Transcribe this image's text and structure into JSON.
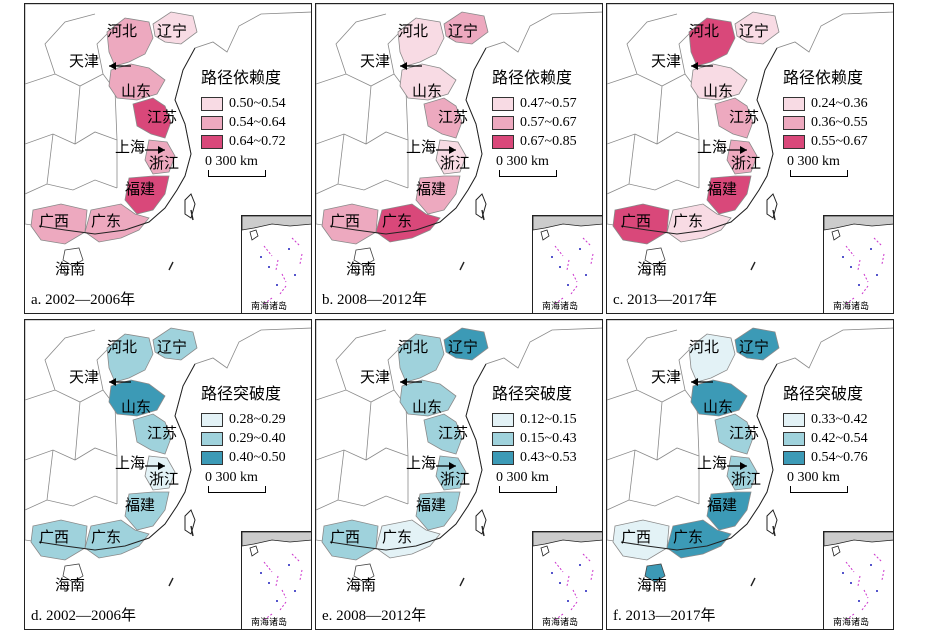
{
  "colors": {
    "pink1": "#f8dbe4",
    "pink2": "#eda9bf",
    "pink3": "#d9487a",
    "blue1": "#e3f2f6",
    "blue2": "#9fd2dc",
    "blue3": "#3c9ab6",
    "land": "#ffffff",
    "border": "#8a8a8a",
    "coast": "#222222"
  },
  "labels": {
    "hebei": "河北",
    "liaoning": "辽宁",
    "tianjin": "天津",
    "shandong": "山东",
    "jiangsu": "江苏",
    "shanghai": "上海",
    "zhejiang": "浙江",
    "fujian": "福建",
    "guangxi": "广西",
    "guangdong": "广东",
    "hainan": "海南"
  },
  "inset_label": "南海诸岛",
  "scale": "0 300 km",
  "panels": [
    {
      "caption": "a. 2002—2006年",
      "legend_title": "路径依赖度",
      "legend": [
        {
          "range": "0.50~0.54",
          "color": "#f8dbe4"
        },
        {
          "range": "0.54~0.64",
          "color": "#eda9bf"
        },
        {
          "range": "0.64~0.72",
          "color": "#d9487a"
        }
      ],
      "fills": {
        "hebei": "#eda9bf",
        "liaoning": "#f8dbe4",
        "shandong": "#eda9bf",
        "jiangsu": "#d9487a",
        "zhejiang": "#eda9bf",
        "fujian": "#d9487a",
        "guangdong": "#eda9bf",
        "guangxi": "#eda9bf",
        "hainan": "#ffffff"
      }
    },
    {
      "caption": "b. 2008—2012年",
      "legend_title": "路径依赖度",
      "legend": [
        {
          "range": "0.47~0.57",
          "color": "#f8dbe4"
        },
        {
          "range": "0.57~0.67",
          "color": "#eda9bf"
        },
        {
          "range": "0.67~0.85",
          "color": "#d9487a"
        }
      ],
      "fills": {
        "hebei": "#f8dbe4",
        "liaoning": "#eda9bf",
        "shandong": "#f8dbe4",
        "jiangsu": "#eda9bf",
        "zhejiang": "#f8dbe4",
        "fujian": "#eda9bf",
        "guangdong": "#d9487a",
        "guangxi": "#eda9bf",
        "hainan": "#ffffff"
      }
    },
    {
      "caption": "c. 2013—2017年",
      "legend_title": "路径依赖度",
      "legend": [
        {
          "range": "0.24~0.36",
          "color": "#f8dbe4"
        },
        {
          "range": "0.36~0.55",
          "color": "#eda9bf"
        },
        {
          "range": "0.55~0.67",
          "color": "#d9487a"
        }
      ],
      "fills": {
        "hebei": "#d9487a",
        "liaoning": "#f8dbe4",
        "shandong": "#f8dbe4",
        "jiangsu": "#eda9bf",
        "zhejiang": "#eda9bf",
        "fujian": "#d9487a",
        "guangdong": "#f8dbe4",
        "guangxi": "#d9487a",
        "hainan": "#ffffff"
      }
    },
    {
      "caption": "d. 2002—2006年",
      "legend_title": "路径突破度",
      "legend": [
        {
          "range": "0.28~0.29",
          "color": "#e3f2f6"
        },
        {
          "range": "0.29~0.40",
          "color": "#9fd2dc"
        },
        {
          "range": "0.40~0.50",
          "color": "#3c9ab6"
        }
      ],
      "fills": {
        "hebei": "#9fd2dc",
        "liaoning": "#9fd2dc",
        "shandong": "#3c9ab6",
        "jiangsu": "#9fd2dc",
        "zhejiang": "#e3f2f6",
        "fujian": "#9fd2dc",
        "guangdong": "#9fd2dc",
        "guangxi": "#9fd2dc",
        "hainan": "#ffffff"
      }
    },
    {
      "caption": "e. 2008—2012年",
      "legend_title": "路径突破度",
      "legend": [
        {
          "range": "0.12~0.15",
          "color": "#e3f2f6"
        },
        {
          "range": "0.15~0.43",
          "color": "#9fd2dc"
        },
        {
          "range": "0.43~0.53",
          "color": "#3c9ab6"
        }
      ],
      "fills": {
        "hebei": "#9fd2dc",
        "liaoning": "#3c9ab6",
        "shandong": "#9fd2dc",
        "jiangsu": "#9fd2dc",
        "zhejiang": "#9fd2dc",
        "fujian": "#9fd2dc",
        "guangdong": "#e3f2f6",
        "guangxi": "#9fd2dc",
        "hainan": "#ffffff"
      }
    },
    {
      "caption": "f. 2013—2017年",
      "legend_title": "路径突破度",
      "legend": [
        {
          "range": "0.33~0.42",
          "color": "#e3f2f6"
        },
        {
          "range": "0.42~0.54",
          "color": "#9fd2dc"
        },
        {
          "range": "0.54~0.76",
          "color": "#3c9ab6"
        }
      ],
      "fills": {
        "hebei": "#e3f2f6",
        "liaoning": "#3c9ab6",
        "shandong": "#3c9ab6",
        "jiangsu": "#9fd2dc",
        "zhejiang": "#9fd2dc",
        "fujian": "#3c9ab6",
        "guangdong": "#3c9ab6",
        "guangxi": "#e3f2f6",
        "hainan": "#3c9ab6"
      }
    }
  ]
}
